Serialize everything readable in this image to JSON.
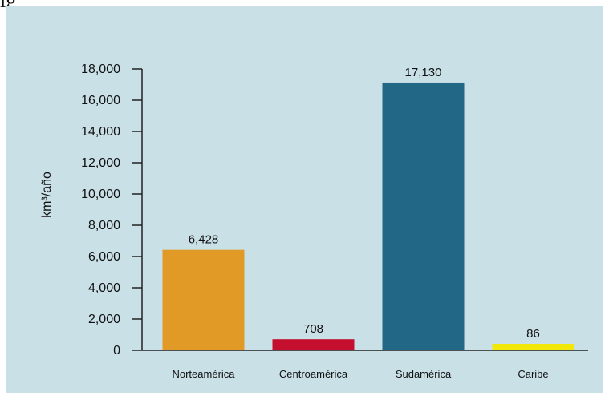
{
  "header": {
    "fragment": "ig"
  },
  "chart_data": {
    "type": "bar",
    "categories": [
      "Norteamérica",
      "Centroamérica",
      "Sudamérica",
      "Caribe"
    ],
    "values": [
      6428,
      708,
      17130,
      86
    ],
    "value_labels": [
      "6,428",
      "708",
      "17,130",
      "86"
    ],
    "colors": [
      "#e09a25",
      "#c4102e",
      "#226886",
      "#f1e80a"
    ],
    "ylabel": "km³/año",
    "ylim": [
      0,
      18000
    ],
    "yticks": [
      0,
      2000,
      4000,
      6000,
      8000,
      10000,
      12000,
      14000,
      16000,
      18000
    ],
    "ytick_labels": [
      "0",
      "2,000",
      "4,000",
      "6,000",
      "8,000",
      "10,000",
      "12,000",
      "14,000",
      "16,000",
      "18,000"
    ],
    "grid": false,
    "background": "#c9e0e7"
  }
}
